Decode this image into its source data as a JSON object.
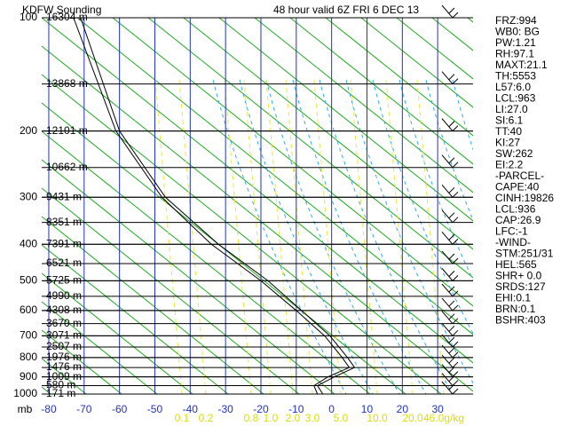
{
  "chart_data": {
    "type": "sounding",
    "title": "KDFW Sounding",
    "subtitle": "48 hour   valid 6Z FRI  6 DEC 13",
    "y_label": "mb",
    "ylim": [
      100,
      1000
    ],
    "yticks": [
      100,
      200,
      300,
      400,
      500,
      600,
      700,
      800,
      900,
      1000
    ],
    "xlim": [
      -82,
      40
    ],
    "xticks": [
      -80,
      -70,
      -60,
      -50,
      -40,
      -30,
      -20,
      -10,
      0,
      10,
      20,
      30
    ],
    "height_levels": {
      "pressures": [
        100,
        150,
        200,
        250,
        300,
        350,
        400,
        450,
        500,
        550,
        600,
        650,
        700,
        750,
        800,
        850,
        900,
        950,
        1000
      ],
      "labels": [
        "16304 m",
        "13868 m",
        "12101 m",
        "10662 m",
        "9431 m",
        "8351 m",
        "7391 m",
        "6521 m",
        "5725 m",
        "4990 m",
        "4308 m",
        "3670 m",
        "3071 m",
        "2507 m",
        "1976 m",
        "1476 m",
        "1009 m",
        "580 m",
        "171 m"
      ]
    },
    "profiles": [
      {
        "color": "#000000",
        "pressure": [
          100,
          200,
          300,
          400,
          500,
          600,
          700,
          800,
          850,
          900,
          950,
          1000
        ],
        "temperature": [
          -71,
          -60,
          -47,
          -32,
          -18,
          -8.5,
          -0.5,
          4.5,
          6.5,
          0.8,
          -4,
          -2.5
        ]
      },
      {
        "color": "#000000",
        "pressure": [
          100,
          200,
          300,
          400,
          500,
          600,
          700,
          800,
          850,
          900,
          950,
          1000
        ],
        "temperature": [
          -73,
          -61,
          -48,
          -34,
          -20,
          -10,
          -2,
          3,
          5,
          -1,
          -5,
          -4
        ]
      }
    ],
    "mixing_ratio_labels": [
      "0.1",
      "0.2",
      "0.8",
      "1.0",
      "2.0",
      "3.0",
      "5.0",
      "10.0",
      "20.0",
      "46.0g/kg"
    ],
    "indices": [
      "FRZ:994",
      "WB0: BG",
      "PW:1.21",
      "RH:97.1",
      "MAXT:21.1",
      "TH:5553",
      "L57:6.0",
      "LCL:963",
      "LI:27.0",
      "SI:6.1",
      "TT:40",
      "KI:27",
      "SW:262",
      "EI:2.2",
      "-PARCEL-",
      "CAPE:40",
      "CINH:19826",
      "LCL:936",
      "CAP:26.9",
      "LFC:-1",
      "-WIND-",
      "STM:251/31",
      "HEL:565",
      "SHR+ 0.0",
      "SRDS:127",
      "EHI:0.1",
      "BRN:0.1",
      "BSHR:403"
    ]
  }
}
